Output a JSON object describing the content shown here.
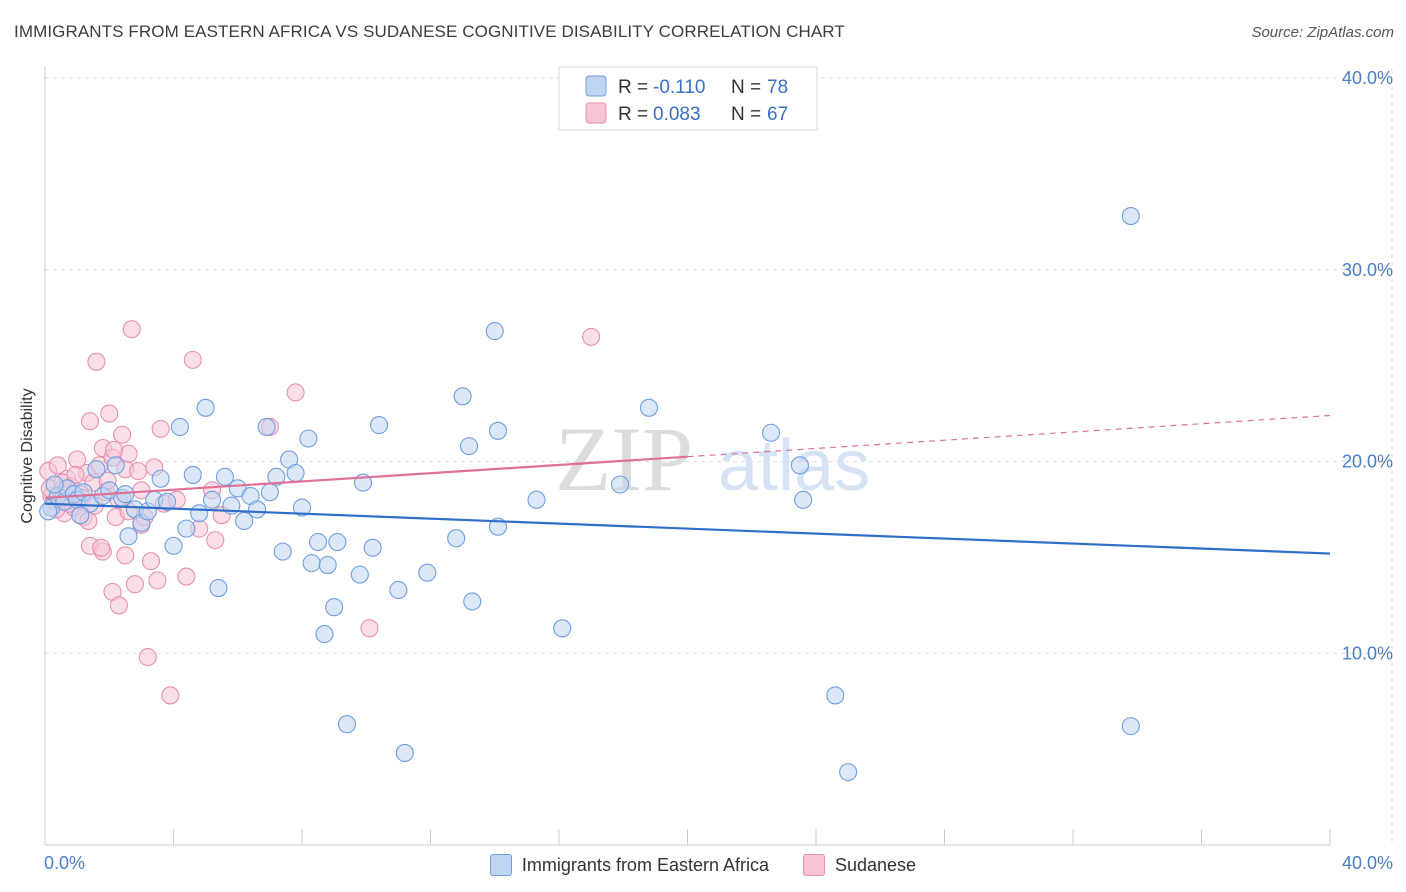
{
  "title": "IMMIGRANTS FROM EASTERN AFRICA VS SUDANESE COGNITIVE DISABILITY CORRELATION CHART",
  "source": "Source: ZipAtlas.com",
  "colors": {
    "blue": "#6f9ee0",
    "blue_fill": "#c0d5f3",
    "blue_line": "#2f6ec9",
    "pink": "#e890ae",
    "pink_fill": "#f6c4d5",
    "pink_line": "#e0709a",
    "tick_text": "#4a7cc9",
    "grid": "#dddddd"
  },
  "legend": {
    "r_label": "R =",
    "n_label": "N =",
    "blue": {
      "r": "-0.110",
      "n": "78"
    },
    "pink": {
      "r": "0.083",
      "n": "67"
    }
  },
  "watermark": {
    "zip": "ZIP",
    "atlas": "atlas"
  },
  "chart_data": {
    "type": "scatter",
    "title": "IMMIGRANTS FROM EASTERN AFRICA VS SUDANESE COGNITIVE DISABILITY CORRELATION CHART",
    "xlabel": "",
    "ylabel": "Cognitive Disability",
    "xlim": [
      0,
      40
    ],
    "ylim": [
      0,
      40
    ],
    "x_tick_labels": [
      "0.0%",
      "40.0%"
    ],
    "y_ticks": [
      10,
      20,
      30,
      40
    ],
    "y_tick_labels": [
      "10.0%",
      "20.0%",
      "30.0%",
      "40.0%"
    ],
    "grid": true,
    "legend_placement": "top-center",
    "series": [
      {
        "name": "Immigrants from Eastern Africa",
        "color": "#6f9ee0",
        "r": -0.11,
        "n": 78,
        "trend": {
          "x": [
            0,
            40
          ],
          "y": [
            17.8,
            15.2
          ],
          "dashed_from": null
        },
        "points": [
          [
            0.2,
            17.6
          ],
          [
            0.4,
            18.2
          ],
          [
            0.6,
            17.9
          ],
          [
            0.7,
            18.6
          ],
          [
            0.9,
            18.3
          ],
          [
            1.0,
            18.0
          ],
          [
            1.2,
            18.4
          ],
          [
            1.4,
            17.8
          ],
          [
            1.6,
            19.6
          ],
          [
            1.8,
            18.2
          ],
          [
            2.0,
            18.5
          ],
          [
            2.2,
            19.8
          ],
          [
            2.4,
            18.1
          ],
          [
            2.6,
            16.1
          ],
          [
            2.8,
            17.5
          ],
          [
            3.0,
            16.8
          ],
          [
            3.2,
            17.4
          ],
          [
            3.4,
            18.0
          ],
          [
            3.6,
            19.1
          ],
          [
            3.8,
            17.9
          ],
          [
            4.0,
            15.6
          ],
          [
            4.2,
            21.8
          ],
          [
            4.4,
            16.5
          ],
          [
            4.6,
            19.3
          ],
          [
            4.8,
            17.3
          ],
          [
            5.0,
            22.8
          ],
          [
            5.2,
            18.0
          ],
          [
            5.4,
            13.4
          ],
          [
            5.6,
            19.2
          ],
          [
            5.8,
            17.7
          ],
          [
            6.0,
            18.6
          ],
          [
            6.2,
            16.9
          ],
          [
            6.4,
            18.2
          ],
          [
            6.6,
            17.5
          ],
          [
            6.9,
            21.8
          ],
          [
            7.0,
            18.4
          ],
          [
            7.2,
            19.2
          ],
          [
            7.4,
            15.3
          ],
          [
            7.6,
            20.1
          ],
          [
            7.8,
            19.4
          ],
          [
            8.0,
            17.6
          ],
          [
            8.2,
            21.2
          ],
          [
            8.3,
            14.7
          ],
          [
            8.5,
            15.8
          ],
          [
            8.7,
            11.0
          ],
          [
            8.8,
            14.6
          ],
          [
            9.0,
            12.4
          ],
          [
            9.1,
            15.8
          ],
          [
            9.4,
            6.3
          ],
          [
            9.8,
            14.1
          ],
          [
            9.9,
            18.9
          ],
          [
            10.2,
            15.5
          ],
          [
            10.4,
            21.9
          ],
          [
            11.0,
            13.3
          ],
          [
            11.2,
            4.8
          ],
          [
            11.9,
            14.2
          ],
          [
            12.8,
            16.0
          ],
          [
            13.0,
            23.4
          ],
          [
            13.2,
            20.8
          ],
          [
            13.3,
            12.7
          ],
          [
            14.0,
            26.8
          ],
          [
            14.1,
            16.6
          ],
          [
            14.1,
            21.6
          ],
          [
            15.3,
            18.0
          ],
          [
            16.1,
            11.3
          ],
          [
            17.9,
            18.8
          ],
          [
            18.8,
            22.8
          ],
          [
            22.6,
            21.5
          ],
          [
            23.5,
            19.8
          ],
          [
            23.6,
            18.0
          ],
          [
            24.6,
            7.8
          ],
          [
            25.0,
            3.8
          ],
          [
            33.8,
            32.8
          ],
          [
            33.8,
            6.2
          ],
          [
            0.1,
            17.4
          ],
          [
            0.3,
            18.8
          ],
          [
            1.1,
            17.2
          ],
          [
            2.5,
            18.3
          ]
        ]
      },
      {
        "name": "Sudanese",
        "color": "#e890ae",
        "r": 0.083,
        "n": 67,
        "trend": {
          "x": [
            0,
            40
          ],
          "y": [
            18.1,
            22.4
          ],
          "solid_until_x": 20
        },
        "points": [
          [
            0.1,
            19.5
          ],
          [
            0.2,
            18.2
          ],
          [
            0.3,
            17.9
          ],
          [
            0.4,
            19.8
          ],
          [
            0.5,
            18.5
          ],
          [
            0.6,
            17.3
          ],
          [
            0.7,
            19.1
          ],
          [
            0.8,
            18.7
          ],
          [
            0.9,
            17.6
          ],
          [
            1.0,
            20.1
          ],
          [
            1.1,
            18.3
          ],
          [
            1.2,
            17.1
          ],
          [
            1.3,
            19.4
          ],
          [
            1.4,
            15.6
          ],
          [
            1.4,
            22.1
          ],
          [
            1.5,
            18.9
          ],
          [
            1.6,
            25.2
          ],
          [
            1.7,
            19.8
          ],
          [
            1.8,
            20.7
          ],
          [
            1.8,
            15.3
          ],
          [
            1.9,
            18.4
          ],
          [
            2.0,
            22.5
          ],
          [
            2.1,
            20.2
          ],
          [
            2.1,
            13.2
          ],
          [
            2.2,
            17.1
          ],
          [
            2.3,
            18.0
          ],
          [
            2.3,
            12.5
          ],
          [
            2.4,
            21.4
          ],
          [
            2.5,
            15.1
          ],
          [
            2.5,
            19.6
          ],
          [
            2.6,
            17.4
          ],
          [
            2.6,
            20.4
          ],
          [
            2.7,
            26.9
          ],
          [
            2.8,
            13.6
          ],
          [
            2.9,
            19.5
          ],
          [
            3.0,
            18.5
          ],
          [
            3.0,
            16.7
          ],
          [
            3.1,
            17.1
          ],
          [
            3.2,
            9.8
          ],
          [
            3.3,
            14.8
          ],
          [
            3.4,
            19.7
          ],
          [
            3.5,
            13.8
          ],
          [
            3.6,
            21.7
          ],
          [
            3.7,
            17.8
          ],
          [
            3.9,
            7.8
          ],
          [
            4.1,
            18.0
          ],
          [
            4.4,
            14.0
          ],
          [
            4.6,
            25.3
          ],
          [
            4.8,
            16.5
          ],
          [
            5.2,
            18.5
          ],
          [
            5.3,
            15.9
          ],
          [
            5.5,
            17.2
          ],
          [
            7.0,
            21.8
          ],
          [
            7.8,
            23.6
          ],
          [
            10.1,
            11.3
          ],
          [
            17.0,
            26.5
          ],
          [
            0.15,
            18.6
          ],
          [
            0.35,
            17.5
          ],
          [
            0.55,
            18.9
          ],
          [
            0.75,
            17.8
          ],
          [
            0.95,
            19.3
          ],
          [
            1.15,
            18.1
          ],
          [
            1.35,
            16.9
          ],
          [
            1.55,
            17.7
          ],
          [
            1.75,
            15.5
          ],
          [
            1.95,
            19.0
          ],
          [
            2.15,
            20.6
          ]
        ]
      }
    ]
  },
  "bottom_legend": {
    "blue_label": "Immigrants from Eastern Africa",
    "pink_label": "Sudanese"
  }
}
